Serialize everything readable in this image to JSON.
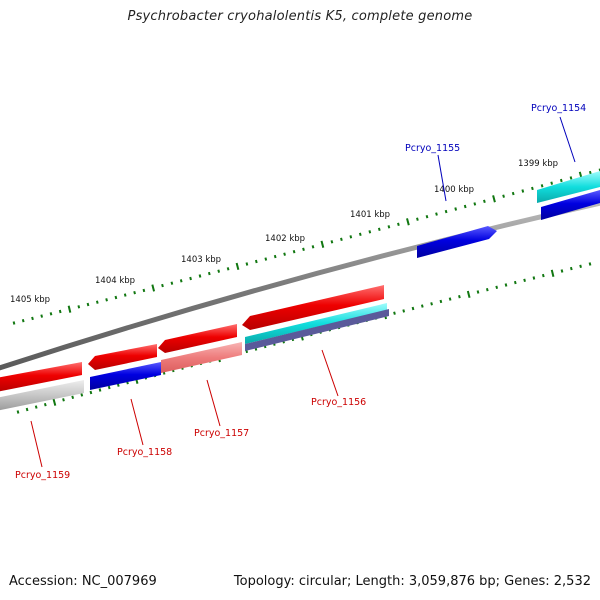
{
  "title": "Psychrobacter cryohalolentis K5, complete genome",
  "footer": {
    "accession": "Accession: NC_007969",
    "summary": "Topology: circular; Length: 3,059,876 bp; Genes: 2,532"
  },
  "colors": {
    "forward_gene": "#ee1111",
    "reverse_gene": "#1111dd",
    "rna_gene": "#22cccc",
    "backbone": "#808080",
    "tick": "#117711",
    "forward_label": "#cc0000",
    "reverse_label": "#0000bb"
  },
  "ticks": [
    {
      "label": "1399 kbp"
    },
    {
      "label": "1400 kbp"
    },
    {
      "label": "1401 kbp"
    },
    {
      "label": "1402 kbp"
    },
    {
      "label": "1403 kbp"
    },
    {
      "label": "1404 kbp"
    },
    {
      "label": "1405 kbp"
    }
  ],
  "genes": [
    {
      "label": "Pcryo_1154",
      "strand": "reverse"
    },
    {
      "label": "Pcryo_1155",
      "strand": "reverse"
    },
    {
      "label": "Pcryo_1156",
      "strand": "forward"
    },
    {
      "label": "Pcryo_1157",
      "strand": "forward"
    },
    {
      "label": "Pcryo_1158",
      "strand": "forward"
    },
    {
      "label": "Pcryo_1159",
      "strand": "forward"
    }
  ]
}
